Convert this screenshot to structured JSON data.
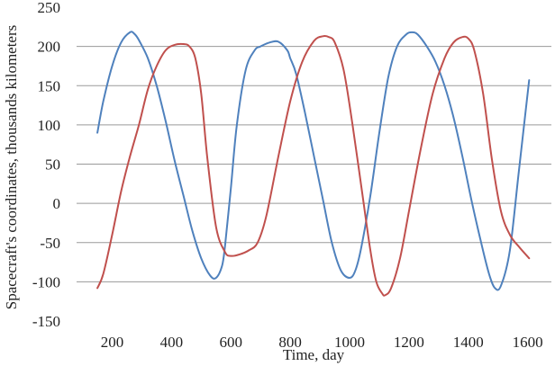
{
  "chart_data": {
    "type": "line",
    "title": "",
    "xlabel": "Time, day",
    "ylabel": "Spacecraft's coordinates, thousands kilometers",
    "xlim": [
      80,
      1680
    ],
    "ylim": [
      -150,
      250
    ],
    "x_ticks": [
      200,
      400,
      600,
      800,
      1000,
      1200,
      1400,
      1600
    ],
    "y_ticks": [
      -150,
      -100,
      -50,
      0,
      50,
      100,
      150,
      200,
      250
    ],
    "grid": "horizontal",
    "legend": "none",
    "series": [
      {
        "color": "#4f81bd",
        "x": [
          150,
          170,
          200,
          230,
          260,
          275,
          290,
          320,
          350,
          380,
          410,
          440,
          470,
          500,
          530,
          550,
          570,
          580,
          600,
          620,
          650,
          680,
          700,
          730,
          760,
          790,
          800,
          820,
          850,
          880,
          910,
          940,
          970,
          1000,
          1020,
          1040,
          1070,
          1100,
          1130,
          1160,
          1190,
          1210,
          1230,
          1260,
          1290,
          1320,
          1350,
          1380,
          1410,
          1440,
          1470,
          1490,
          1510,
          1540,
          1570,
          1605
        ],
        "y": [
          90,
          130,
          175,
          205,
          218,
          216,
          208,
          185,
          150,
          105,
          55,
          10,
          -35,
          -70,
          -92,
          -95,
          -80,
          -55,
          20,
          100,
          170,
          195,
          200,
          205,
          206,
          195,
          185,
          165,
          115,
          60,
          5,
          -50,
          -85,
          -95,
          -85,
          -55,
          10,
          90,
          160,
          200,
          215,
          218,
          215,
          200,
          180,
          150,
          110,
          60,
          5,
          -45,
          -90,
          -108,
          -105,
          -60,
          40,
          157
        ]
      },
      {
        "color": "#c0504d",
        "x": [
          150,
          170,
          200,
          230,
          260,
          290,
          320,
          350,
          380,
          410,
          440,
          460,
          480,
          500,
          520,
          550,
          580,
          600,
          630,
          660,
          690,
          720,
          760,
          800,
          840,
          880,
          910,
          930,
          950,
          980,
          1010,
          1040,
          1070,
          1090,
          1110,
          1120,
          1140,
          1170,
          1200,
          1240,
          1280,
          1320,
          1350,
          1380,
          1400,
          1420,
          1450,
          1480,
          1510,
          1540,
          1570,
          1605
        ],
        "y": [
          -108,
          -90,
          -40,
          15,
          60,
          100,
          145,
          175,
          195,
          202,
          203,
          200,
          185,
          140,
          60,
          -30,
          -62,
          -67,
          -65,
          -60,
          -50,
          -15,
          60,
          130,
          180,
          207,
          213,
          212,
          205,
          170,
          100,
          20,
          -60,
          -100,
          -115,
          -117,
          -108,
          -70,
          -10,
          70,
          140,
          185,
          205,
          212,
          210,
          195,
          140,
          55,
          -10,
          -40,
          -55,
          -70
        ]
      }
    ]
  }
}
